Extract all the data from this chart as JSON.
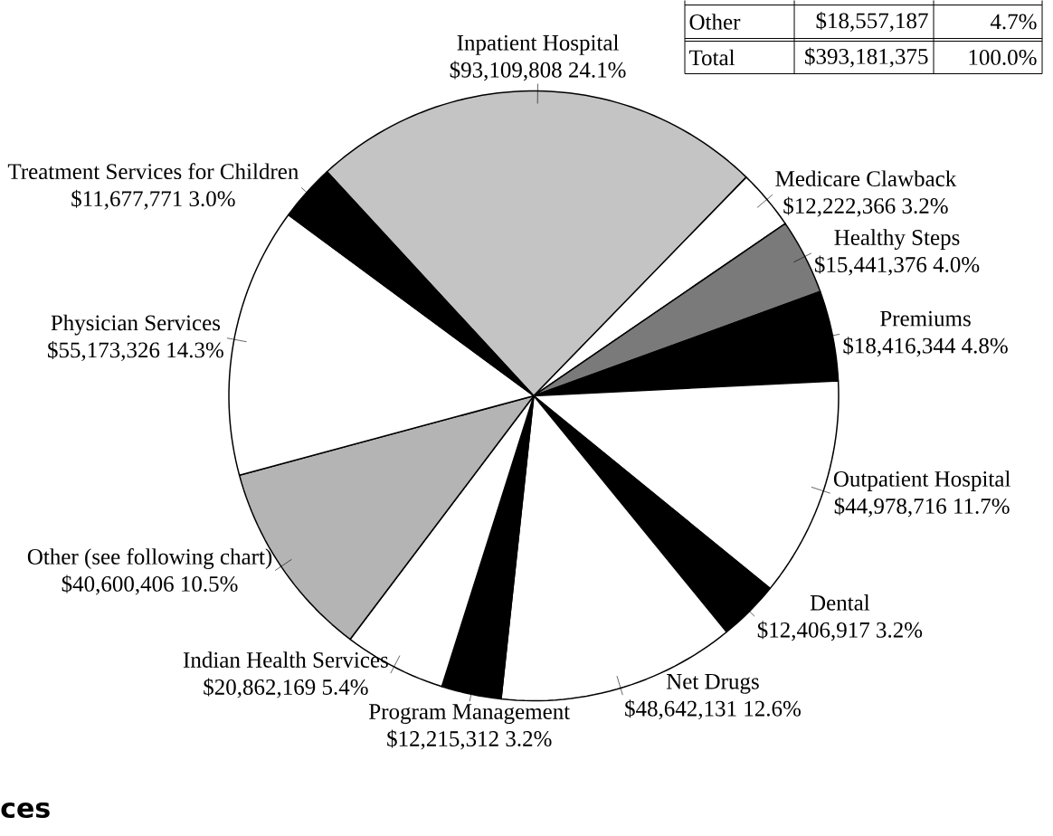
{
  "chart_data": {
    "type": "pie",
    "categories": [
      "Inpatient Hospital",
      "Medicare Clawback",
      "Healthy Steps",
      "Premiums",
      "Outpatient Hospital",
      "Dental",
      "Net Drugs",
      "Program Management",
      "Indian Health Services",
      "Other (see following chart)",
      "Physician Services",
      "Treatment Services for Children"
    ],
    "values": [
      93109808,
      12222366,
      15441376,
      18416344,
      44978716,
      12406917,
      48642131,
      12215312,
      20862169,
      40600406,
      55173326,
      11677771
    ],
    "value_labels": [
      "$93,109,808  24.1%",
      "$12,222,366  3.2%",
      "$15,441,376  4.0%",
      "$18,416,344  4.8%",
      "$44,978,716  11.7%",
      "$12,406,917  3.2%",
      "$48,642,131  12.6%",
      "$12,215,312  3.2%",
      "$20,862,169  5.4%",
      "$40,600,406  10.5%",
      "$55,173,326  14.3%",
      "$11,677,771  3.0%"
    ],
    "colors": [
      "#c4c4c4",
      "#ffffff",
      "#7a7a7a",
      "#000000",
      "#ffffff",
      "#000000",
      "#ffffff",
      "#000000",
      "#ffffff",
      "#b4b4b4",
      "#ffffff",
      "#000000"
    ],
    "annotations": [
      "Other",
      "$18,557,187",
      "4.7%",
      "Total",
      "$393,181,375",
      "100.0%",
      "ces"
    ]
  }
}
